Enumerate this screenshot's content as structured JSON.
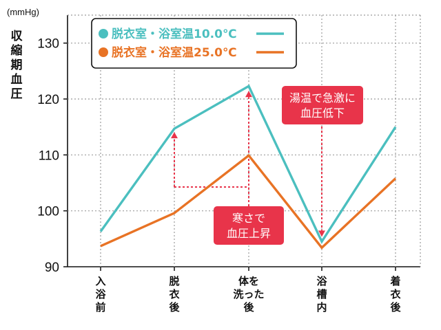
{
  "chart_data": {
    "type": "line",
    "unit_label": "(mmHg)",
    "ylabel": "収縮期血圧",
    "ylim": [
      90,
      135
    ],
    "yticks": [
      90,
      100,
      110,
      120,
      130
    ],
    "categories": [
      "入浴前",
      "脱衣後",
      "体を洗った後",
      "浴槽内",
      "着衣後"
    ],
    "category_lines": [
      [
        "入",
        "浴",
        "前"
      ],
      [
        "脱",
        "衣",
        "後"
      ],
      [
        "体を",
        "洗った",
        "後"
      ],
      [
        "浴",
        "槽",
        "内"
      ],
      [
        "着",
        "衣",
        "後"
      ]
    ],
    "series": [
      {
        "name": "脱衣室・浴室温10.0℃",
        "color": "#4bbfbf",
        "values": [
          96.3,
          114.7,
          122.3,
          94.5,
          115.0
        ]
      },
      {
        "name": "脱衣室・浴室温25.0℃",
        "color": "#e87325",
        "values": [
          93.7,
          99.6,
          109.9,
          93.4,
          105.8
        ]
      }
    ],
    "grid": "dotted",
    "legend_position": "top-left",
    "annotations": [
      {
        "lines": [
          "寒さで",
          "血圧上昇"
        ],
        "color": "#e8344a"
      },
      {
        "lines": [
          "湯温で急激に",
          "血圧低下"
        ],
        "color": "#e8344a"
      }
    ]
  }
}
